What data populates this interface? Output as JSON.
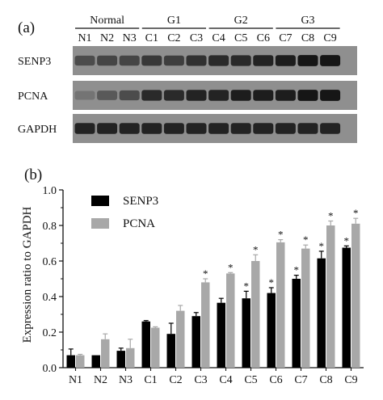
{
  "panel_a": {
    "label": "(a)",
    "groups": [
      {
        "name": "Normal",
        "lanes": [
          "N1",
          "N2",
          "N3"
        ]
      },
      {
        "name": "G1",
        "lanes": [
          "C1",
          "C2",
          "C3"
        ]
      },
      {
        "name": "G2",
        "lanes": [
          "C4",
          "C5",
          "C6"
        ]
      },
      {
        "name": "G3",
        "lanes": [
          "C7",
          "C8",
          "C9"
        ]
      }
    ],
    "blots": [
      {
        "label": "SENP3",
        "intensity": [
          0.55,
          0.6,
          0.6,
          0.7,
          0.65,
          0.75,
          0.8,
          0.8,
          0.85,
          0.9,
          0.95,
          0.95
        ]
      },
      {
        "label": "PCNA",
        "intensity": [
          0.25,
          0.45,
          0.55,
          0.8,
          0.8,
          0.85,
          0.85,
          0.9,
          0.9,
          0.9,
          0.95,
          0.95
        ]
      },
      {
        "label": "GAPDH",
        "intensity": [
          0.85,
          0.85,
          0.85,
          0.85,
          0.85,
          0.85,
          0.85,
          0.85,
          0.85,
          0.85,
          0.85,
          0.85
        ]
      }
    ]
  },
  "chart_data": {
    "panel_label": "(b)",
    "type": "bar",
    "categories": [
      "N1",
      "N2",
      "N3",
      "C1",
      "C2",
      "C3",
      "C4",
      "C5",
      "C6",
      "C7",
      "C8",
      "C9"
    ],
    "ylabel": "Expression ratio to GAPDH",
    "ylim": [
      0,
      1.0
    ],
    "yticks": [
      "0.0",
      "0.2",
      "0.4",
      "0.6",
      "0.8",
      "1.0"
    ],
    "legend_position": "top-left",
    "significance_mark": "*",
    "series": [
      {
        "name": "SENP3",
        "color": "#000000",
        "values": [
          0.07,
          0.07,
          0.095,
          0.26,
          0.19,
          0.29,
          0.365,
          0.39,
          0.42,
          0.5,
          0.615,
          0.675
        ],
        "errors": [
          0.035,
          0.0,
          0.015,
          0.005,
          0.06,
          0.02,
          0.025,
          0.04,
          0.03,
          0.02,
          0.04,
          0.01
        ],
        "significant": [
          false,
          false,
          false,
          false,
          false,
          false,
          false,
          true,
          true,
          true,
          true,
          true
        ]
      },
      {
        "name": "PCNA",
        "color": "#a8a8a8",
        "values": [
          0.07,
          0.16,
          0.11,
          0.225,
          0.32,
          0.48,
          0.53,
          0.6,
          0.705,
          0.67,
          0.8,
          0.81
        ],
        "errors": [
          0.005,
          0.03,
          0.05,
          0.005,
          0.03,
          0.02,
          0.005,
          0.035,
          0.015,
          0.02,
          0.025,
          0.03
        ],
        "significant": [
          false,
          false,
          false,
          false,
          false,
          true,
          true,
          true,
          true,
          true,
          true,
          true
        ]
      }
    ]
  }
}
